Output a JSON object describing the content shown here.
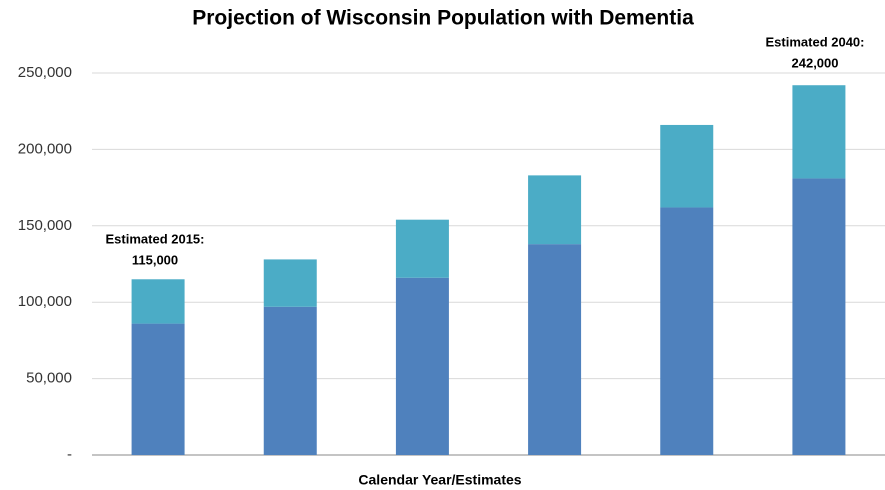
{
  "chart_data": {
    "type": "bar",
    "stacked": true,
    "title": "Projection of Wisconsin Population with Dementia",
    "x_label": "Calendar Year/Estimates",
    "categories": [
      null,
      null,
      null,
      null,
      null,
      null
    ],
    "series": [
      {
        "color": "#4f81bd",
        "values": [
          86000,
          97000,
          116000,
          138000,
          162000,
          181000
        ]
      },
      {
        "color": "#4bacc6",
        "values": [
          29000,
          31000,
          38000,
          45000,
          54000,
          61000
        ]
      }
    ],
    "ylim": [
      0,
      250000
    ],
    "yticks": [
      {
        "value": 0,
        "label": "-"
      },
      {
        "value": 50000,
        "label": "50,000"
      },
      {
        "value": 100000,
        "label": "100,000"
      },
      {
        "value": 150000,
        "label": "150,000"
      },
      {
        "value": 200000,
        "label": "200,000"
      },
      {
        "value": 250000,
        "label": "250,000"
      }
    ],
    "grid": true,
    "annotations": [
      [
        "Estimated 2015:",
        "115,000"
      ],
      [
        "Estimated 2040:",
        "242,000"
      ]
    ]
  }
}
